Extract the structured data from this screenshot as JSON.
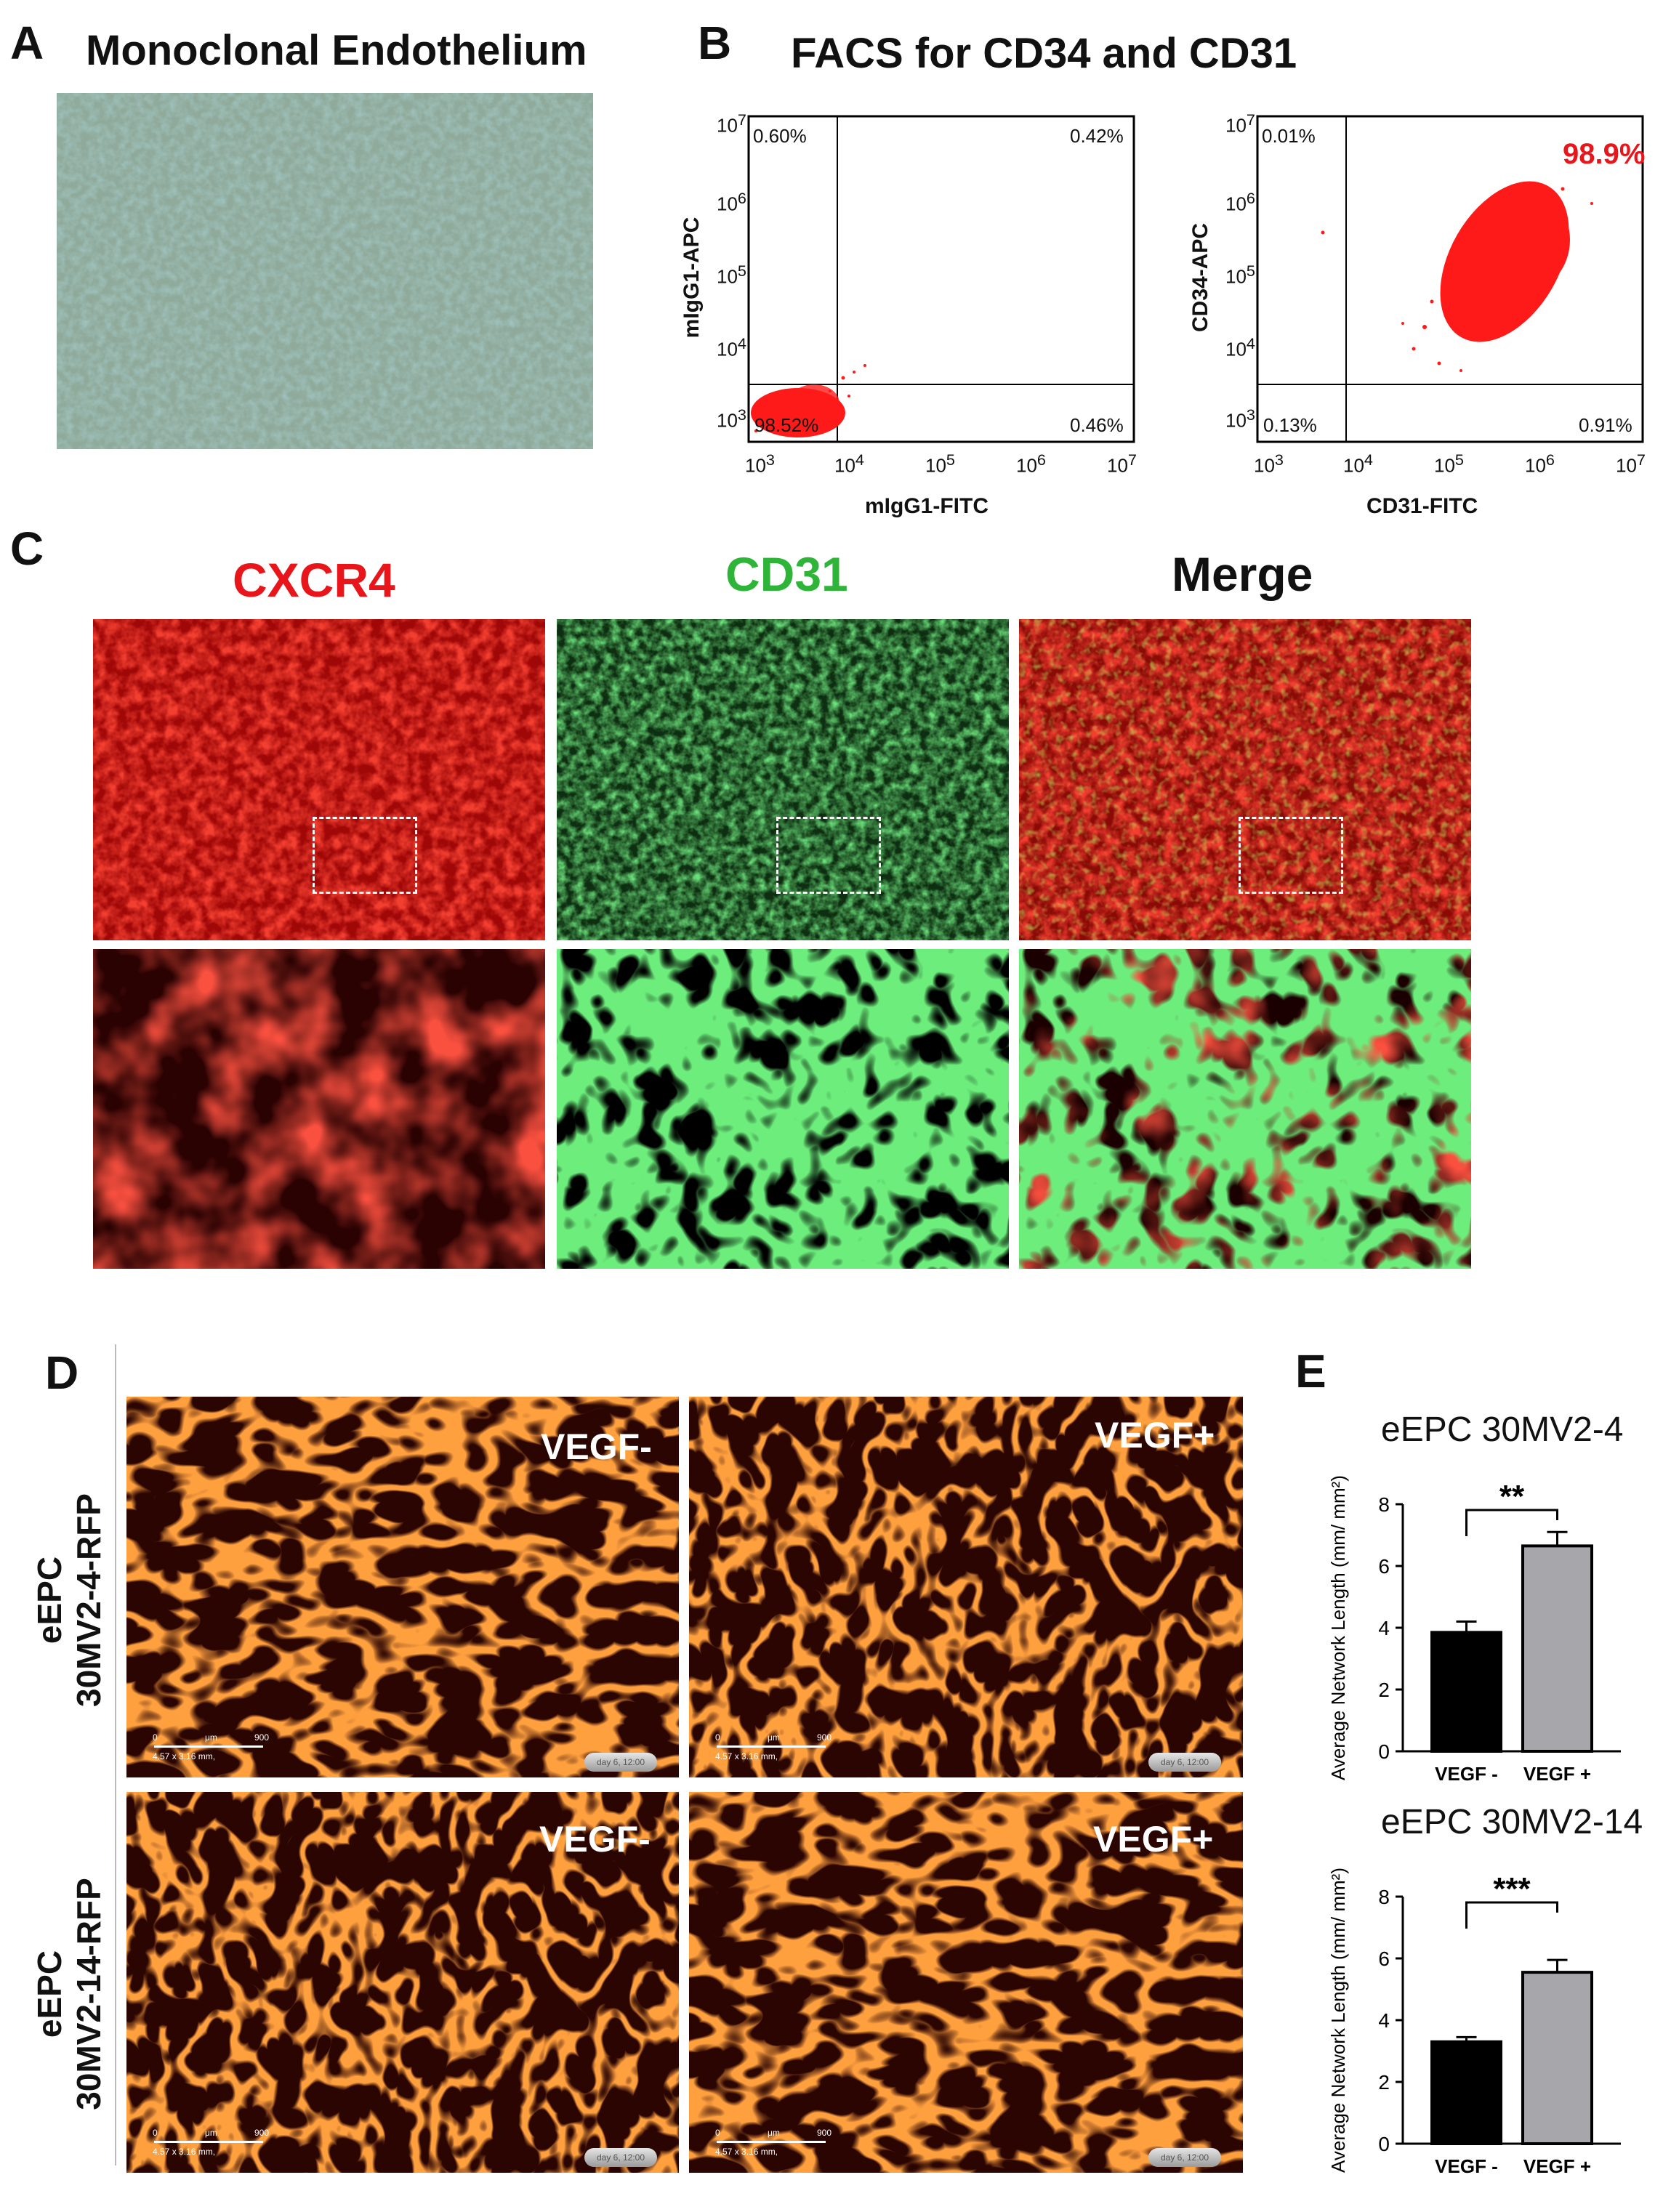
{
  "panels": {
    "a": {
      "letter": "A",
      "title": "Monoclonal Endothelium"
    },
    "b": {
      "letter": "B",
      "title": "FACS for CD34 and CD31",
      "plots": [
        {
          "ylabel": "mIgG1-APC",
          "xlabel": "mIgG1-FITC",
          "q": {
            "ul": "0.60%",
            "ur": "0.42%",
            "ll": "98.52%",
            "lr": "0.46%"
          }
        },
        {
          "ylabel": "CD34-APC",
          "xlabel": "CD31-FITC",
          "q": {
            "ul": "0.01%",
            "ur": "98.9%",
            "ll": "0.13%",
            "lr": "0.91%"
          }
        }
      ],
      "ticks": [
        "10",
        "3",
        "4",
        "5",
        "6",
        "7"
      ]
    },
    "c": {
      "letter": "C",
      "cols": [
        "CXCR4",
        "CD31",
        "Merge"
      ]
    },
    "d": {
      "letter": "D",
      "rows": [
        {
          "l1": "eEPC",
          "l2": "30MV2-4-RFP"
        },
        {
          "l1": "eEPC",
          "l2": "30MV2-14-RFP"
        }
      ],
      "vneg": "VEGF-",
      "vpos": "VEGF+",
      "scale0": "0",
      "scaleUnit": "μm",
      "scaleMax": "900",
      "scaleDims": "4.57 x 3.16 mm,",
      "day": "day 6, 12:00"
    },
    "e": {
      "letter": "E"
    }
  },
  "chart_data": [
    {
      "type": "bar",
      "title": "eEPC 30MV2-4",
      "ylabel": "Average Network Length (mm/ mm²)",
      "categories": [
        "VEGF -",
        "VEGF +"
      ],
      "values": [
        3.85,
        6.65
      ],
      "errors": [
        0.35,
        0.45
      ],
      "ylim": [
        0,
        8
      ],
      "yticks": [
        0,
        2,
        4,
        6,
        8
      ],
      "significance": "**",
      "colors": [
        "#000000",
        "#a6a6ab"
      ]
    },
    {
      "type": "bar",
      "title": "eEPC 30MV2-14",
      "ylabel": "Average Network Length (mm/ mm²)",
      "categories": [
        "VEGF -",
        "VEGF +"
      ],
      "values": [
        3.3,
        5.55
      ],
      "errors": [
        0.15,
        0.4
      ],
      "ylim": [
        0,
        8
      ],
      "yticks": [
        0,
        2,
        4,
        6,
        8
      ],
      "significance": "***",
      "colors": [
        "#000000",
        "#a6a6ab"
      ]
    }
  ],
  "colors": {
    "red": "#e8161b",
    "green": "#2fb43a",
    "cellRed": "#ff1a00",
    "bar1": "#000000",
    "bar2": "#a6a6ab"
  }
}
